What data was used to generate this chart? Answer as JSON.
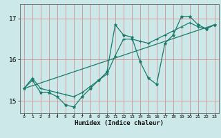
{
  "title": "",
  "xlabel": "Humidex (Indice chaleur)",
  "ylabel": "",
  "bg_color": "#cce8e8",
  "grid_color_h": "#d08080",
  "grid_color_v": "#d08080",
  "line_color": "#1a7a6a",
  "xlim": [
    -0.5,
    23.5
  ],
  "ylim": [
    14.7,
    17.35
  ],
  "yticks": [
    15,
    16,
    17
  ],
  "xticks": [
    0,
    1,
    2,
    3,
    4,
    5,
    6,
    7,
    8,
    9,
    10,
    11,
    12,
    13,
    14,
    15,
    16,
    17,
    18,
    19,
    20,
    21,
    22,
    23
  ],
  "series1_x": [
    0,
    1,
    2,
    3,
    4,
    5,
    6,
    7,
    8,
    9,
    10,
    11,
    12,
    13,
    14,
    15,
    16,
    17,
    18,
    19,
    20,
    21,
    22,
    23
  ],
  "series1_y": [
    15.3,
    15.5,
    15.2,
    15.2,
    15.1,
    14.9,
    14.85,
    15.1,
    15.3,
    15.5,
    15.7,
    16.85,
    16.6,
    16.55,
    15.95,
    15.55,
    15.4,
    16.4,
    16.6,
    17.05,
    17.05,
    16.85,
    16.75,
    16.85
  ],
  "series2_x": [
    0,
    1,
    2,
    3,
    4,
    5,
    6,
    7,
    8,
    9,
    10,
    11,
    12,
    13,
    14,
    15,
    16,
    17,
    18,
    19,
    20,
    21,
    22,
    23
  ],
  "series2_y": [
    15.3,
    15.55,
    15.3,
    15.25,
    15.2,
    15.15,
    15.1,
    15.2,
    15.35,
    15.5,
    15.65,
    16.1,
    16.5,
    16.5,
    16.45,
    16.4,
    16.5,
    16.6,
    16.7,
    16.8,
    16.9,
    16.8,
    16.75,
    16.85
  ],
  "series3_x": [
    0,
    23
  ],
  "series3_y": [
    15.3,
    16.85
  ]
}
